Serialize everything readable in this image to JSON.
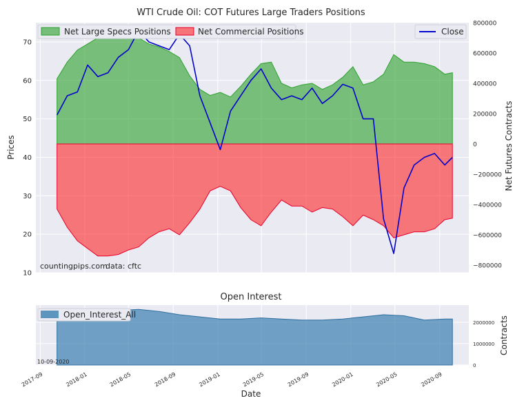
{
  "chart_data": [
    {
      "type": "area",
      "title": "WTI Crude Oil: COT Futures Large Traders Positions",
      "ylabel_left": "Prices",
      "ylabel_right": "Net Futures Contracts",
      "ylim_left": [
        10,
        75
      ],
      "ylim_right": [
        -850000,
        800000
      ],
      "yticks_left": [
        10,
        20,
        30,
        40,
        50,
        60,
        70
      ],
      "yticks_right": [
        -800000,
        -600000,
        -400000,
        -200000,
        0,
        200000,
        400000,
        600000,
        800000
      ],
      "ytick_labels_right": [
        "−800000",
        "−600000",
        "−400000",
        "−200000",
        "0",
        "200000",
        "400000",
        "600000",
        "800000"
      ],
      "grid": true,
      "legend_left": [
        "Net Large Specs Positions",
        "Net Commercial Positions"
      ],
      "legend_right": [
        "Close"
      ],
      "colors": {
        "specs": "#2ca02c",
        "commercial": "#ff0000",
        "close": "#0000cc",
        "background": "#eaeaf2"
      },
      "annotations": [
        "countingpips.com",
        "data: cftc"
      ],
      "x": [
        "2017-10-17",
        "2017-11-14",
        "2017-12-12",
        "2018-01-09",
        "2018-02-06",
        "2018-03-06",
        "2018-04-03",
        "2018-05-01",
        "2018-05-29",
        "2018-06-26",
        "2018-07-24",
        "2018-08-21",
        "2018-09-18",
        "2018-10-16",
        "2018-11-13",
        "2018-12-11",
        "2019-01-08",
        "2019-02-05",
        "2019-03-05",
        "2019-04-02",
        "2019-04-30",
        "2019-05-28",
        "2019-06-25",
        "2019-07-23",
        "2019-08-20",
        "2019-09-17",
        "2019-10-15",
        "2019-11-12",
        "2019-12-10",
        "2020-01-07",
        "2020-02-04",
        "2020-03-03",
        "2020-03-31",
        "2020-04-28",
        "2020-05-26",
        "2020-06-23",
        "2020-07-21",
        "2020-08-18",
        "2020-09-15",
        "2020-10-06"
      ],
      "series": [
        {
          "name": "Net Large Specs Positions",
          "axis": "right",
          "values": [
            430000,
            540000,
            620000,
            660000,
            700000,
            730000,
            720000,
            700000,
            700000,
            660000,
            640000,
            610000,
            570000,
            450000,
            360000,
            320000,
            340000,
            310000,
            380000,
            460000,
            530000,
            540000,
            400000,
            370000,
            390000,
            400000,
            360000,
            390000,
            440000,
            510000,
            390000,
            410000,
            460000,
            590000,
            540000,
            540000,
            530000,
            510000,
            460000,
            470000
          ]
        },
        {
          "name": "Net Commercial Positions",
          "axis": "right",
          "values": [
            -430000,
            -550000,
            -640000,
            -690000,
            -740000,
            -740000,
            -730000,
            -700000,
            -680000,
            -620000,
            -580000,
            -560000,
            -600000,
            -520000,
            -430000,
            -310000,
            -280000,
            -310000,
            -420000,
            -500000,
            -540000,
            -450000,
            -370000,
            -410000,
            -410000,
            -450000,
            -420000,
            -430000,
            -480000,
            -540000,
            -470000,
            -500000,
            -540000,
            -620000,
            -600000,
            -580000,
            -580000,
            -560000,
            -500000,
            -490000
          ]
        },
        {
          "name": "Close",
          "axis": "left",
          "values": [
            51,
            56,
            57,
            64,
            61,
            62,
            66,
            68,
            73,
            70,
            69,
            68,
            72,
            69,
            56,
            49,
            42,
            52,
            56,
            60,
            63,
            58,
            55,
            56,
            55,
            58,
            54,
            56,
            59,
            58,
            50,
            50,
            24,
            15,
            32,
            38,
            40,
            41,
            38,
            40
          ]
        }
      ]
    },
    {
      "type": "area",
      "title": "Open Interest",
      "xlabel": "Date",
      "ylabel": "Contracts",
      "ylim": [
        0,
        2800000
      ],
      "yticks": [
        0,
        1000000,
        2000000
      ],
      "legend": [
        "Open_Interest_All"
      ],
      "annotations": [
        "10-09-2020"
      ],
      "xtick_labels": [
        "2017-09",
        "2018-01",
        "2018-05",
        "2018-09",
        "2019-01",
        "2019-05",
        "2019-09",
        "2020-01",
        "2020-05",
        "2020-09"
      ],
      "x": [
        "2017-10-17",
        "2017-12-12",
        "2018-02-06",
        "2018-04-03",
        "2018-05-29",
        "2018-07-24",
        "2018-09-18",
        "2018-11-13",
        "2019-01-08",
        "2019-03-05",
        "2019-04-30",
        "2019-06-25",
        "2019-08-20",
        "2019-10-15",
        "2019-12-10",
        "2020-02-04",
        "2020-03-31",
        "2020-05-26",
        "2020-07-21",
        "2020-09-15",
        "2020-10-06"
      ],
      "values": [
        2400000,
        2450000,
        2500000,
        2550000,
        2600000,
        2500000,
        2350000,
        2250000,
        2150000,
        2150000,
        2200000,
        2150000,
        2100000,
        2100000,
        2150000,
        2250000,
        2350000,
        2300000,
        2100000,
        2150000,
        2150000
      ]
    }
  ]
}
